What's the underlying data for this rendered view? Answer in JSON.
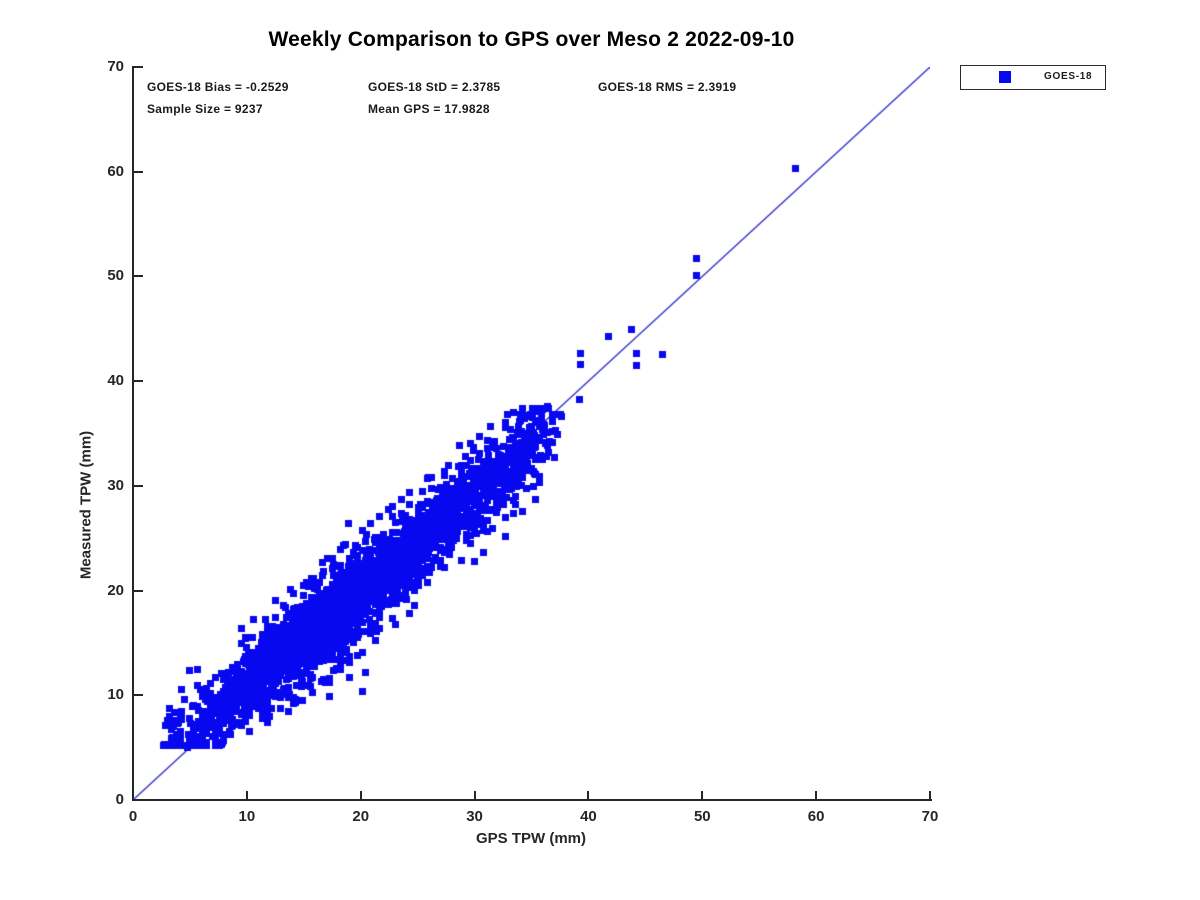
{
  "figure": {
    "background": "#ffffff"
  },
  "chart_data": {
    "type": "scatter",
    "title": "Weekly Comparison to GPS over Meso 2 2022-09-10",
    "xlabel": "GPS TPW (mm)",
    "ylabel": "Measured TPW (mm)",
    "xlim": [
      0,
      70
    ],
    "ylim": [
      0,
      70
    ],
    "xticks": [
      0,
      10,
      20,
      30,
      40,
      50,
      60,
      70
    ],
    "yticks": [
      0,
      10,
      20,
      30,
      40,
      50,
      60,
      70
    ],
    "grid": false,
    "axis_color": "#262626",
    "legend_position": "outside-top-right",
    "stats": {
      "bias": -0.2529,
      "std": 2.3785,
      "rms": 2.3919,
      "sample_size": 9237,
      "mean_gps": 17.9828,
      "bias_label": "GOES-18 Bias = -0.2529",
      "std_label": "GOES-18 StD = 2.3785",
      "rms_label": "GOES-18 RMS = 2.3919",
      "sample_label": "Sample Size = 9237",
      "mean_gps_label": "Mean GPS = 17.9828"
    },
    "identity_line": {
      "from": [
        0,
        0
      ],
      "to": [
        70,
        70
      ],
      "color": "#3333cc"
    },
    "legend": {
      "entries": [
        {
          "label": "GOES-18",
          "marker": "square",
          "color": "#0808f0"
        }
      ]
    },
    "series": [
      {
        "name": "GOES-18",
        "marker": "square",
        "marker_size_px": 7,
        "color": "#0808f0",
        "sample_size": 9237,
        "cloud_model": {
          "seed": 1337,
          "n_points": 2800,
          "x_mixture": [
            {
              "weight": 0.55,
              "mean": 14.5,
              "sd": 5.2
            },
            {
              "weight": 0.4,
              "mean": 23.5,
              "sd": 5.0
            },
            {
              "weight": 0.05,
              "mean": 32.0,
              "sd": 2.2
            }
          ],
          "x_range": [
            2.6,
            37.8
          ],
          "x_quantize_step": 0.38,
          "x_quantize_fraction": 0.55,
          "centerline": {
            "slope": 0.88,
            "intercept": 2.2
          },
          "noise_mixture": [
            {
              "weight": 0.72,
              "sd": 1.5
            },
            {
              "weight": 0.28,
              "sd": 2.8
            }
          ],
          "noise_clip": 5.8,
          "y_range": [
            5.2,
            37.4
          ],
          "clusters": [
            {
              "mode": "identity_offset",
              "n": 150,
              "x_mean": 34.2,
              "x_sd": 1.5,
              "x_range": [
                30.5,
                37.6
              ],
              "dy_mean": -0.8,
              "dy_sd": 2.0,
              "y_range": [
                26.0,
                37.4
              ]
            },
            {
              "mode": "above_centerline",
              "n": 45,
              "x_range": [
                26.5,
                31.2
              ],
              "dy_base": 1.2,
              "dy_sd": 1.7
            },
            {
              "mode": "above_centerline",
              "n": 32,
              "x_range": [
                13.0,
                16.3
              ],
              "dy_base": 1.5,
              "dy_sd": 1.1
            },
            {
              "mode": "uniform_box",
              "n": 14,
              "x_range": [
                2.8,
                4.3
              ],
              "y_range": [
                7.0,
                8.5
              ]
            }
          ]
        },
        "outliers": [
          [
            58.2,
            60.3
          ],
          [
            49.5,
            51.7
          ],
          [
            49.5,
            50.1
          ],
          [
            43.8,
            44.9
          ],
          [
            41.8,
            44.3
          ],
          [
            44.2,
            42.6
          ],
          [
            44.2,
            41.5
          ],
          [
            46.5,
            42.5
          ],
          [
            39.3,
            42.6
          ],
          [
            39.3,
            41.6
          ],
          [
            39.2,
            38.2
          ],
          [
            37.6,
            36.6
          ],
          [
            36.4,
            37.6
          ],
          [
            35.0,
            35.7
          ],
          [
            29.9,
            33.7
          ],
          [
            18.9,
            26.4
          ],
          [
            20.4,
            12.2
          ],
          [
            19.0,
            11.7
          ],
          [
            17.3,
            11.2
          ],
          [
            20.2,
            10.4
          ],
          [
            17.3,
            9.9
          ],
          [
            4.8,
            5.0
          ]
        ]
      }
    ]
  }
}
